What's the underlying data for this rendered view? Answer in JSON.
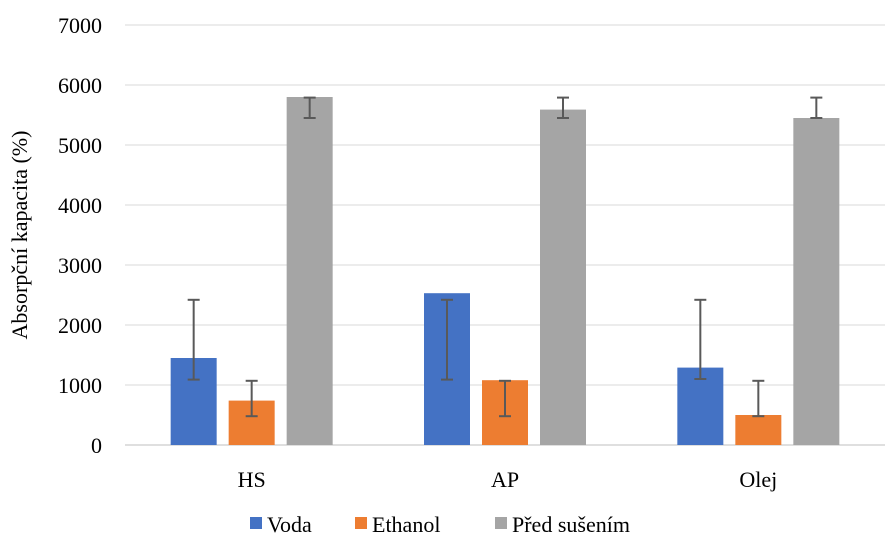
{
  "chart_data": {
    "type": "bar",
    "categories": [
      "HS",
      "AP",
      "Olej"
    ],
    "ylabel": "Absorpční kapacita (%)",
    "xlabel": "",
    "ylim": [
      0,
      7000
    ],
    "yticks": [
      "0",
      "1000",
      "2000",
      "3000",
      "4000",
      "5000",
      "6000",
      "7000"
    ],
    "grid": true,
    "legend_position": "bottom",
    "series": [
      {
        "name": "Voda",
        "color": "#4472C4",
        "values": [
          1450,
          2530,
          1290
        ],
        "error_low": [
          1090,
          1090,
          1100
        ],
        "error_high": [
          2420,
          2420,
          2420
        ]
      },
      {
        "name": "Ethanol",
        "color": "#ED7D31",
        "values": [
          740,
          1080,
          500
        ],
        "error_low": [
          480,
          480,
          480
        ],
        "error_high": [
          1070,
          1070,
          1070
        ]
      },
      {
        "name": "Před sušením",
        "color": "#A5A5A5",
        "values": [
          5800,
          5590,
          5450
        ],
        "error_low": [
          5450,
          5450,
          5450
        ],
        "error_high": [
          5790,
          5790,
          5790
        ]
      }
    ]
  }
}
